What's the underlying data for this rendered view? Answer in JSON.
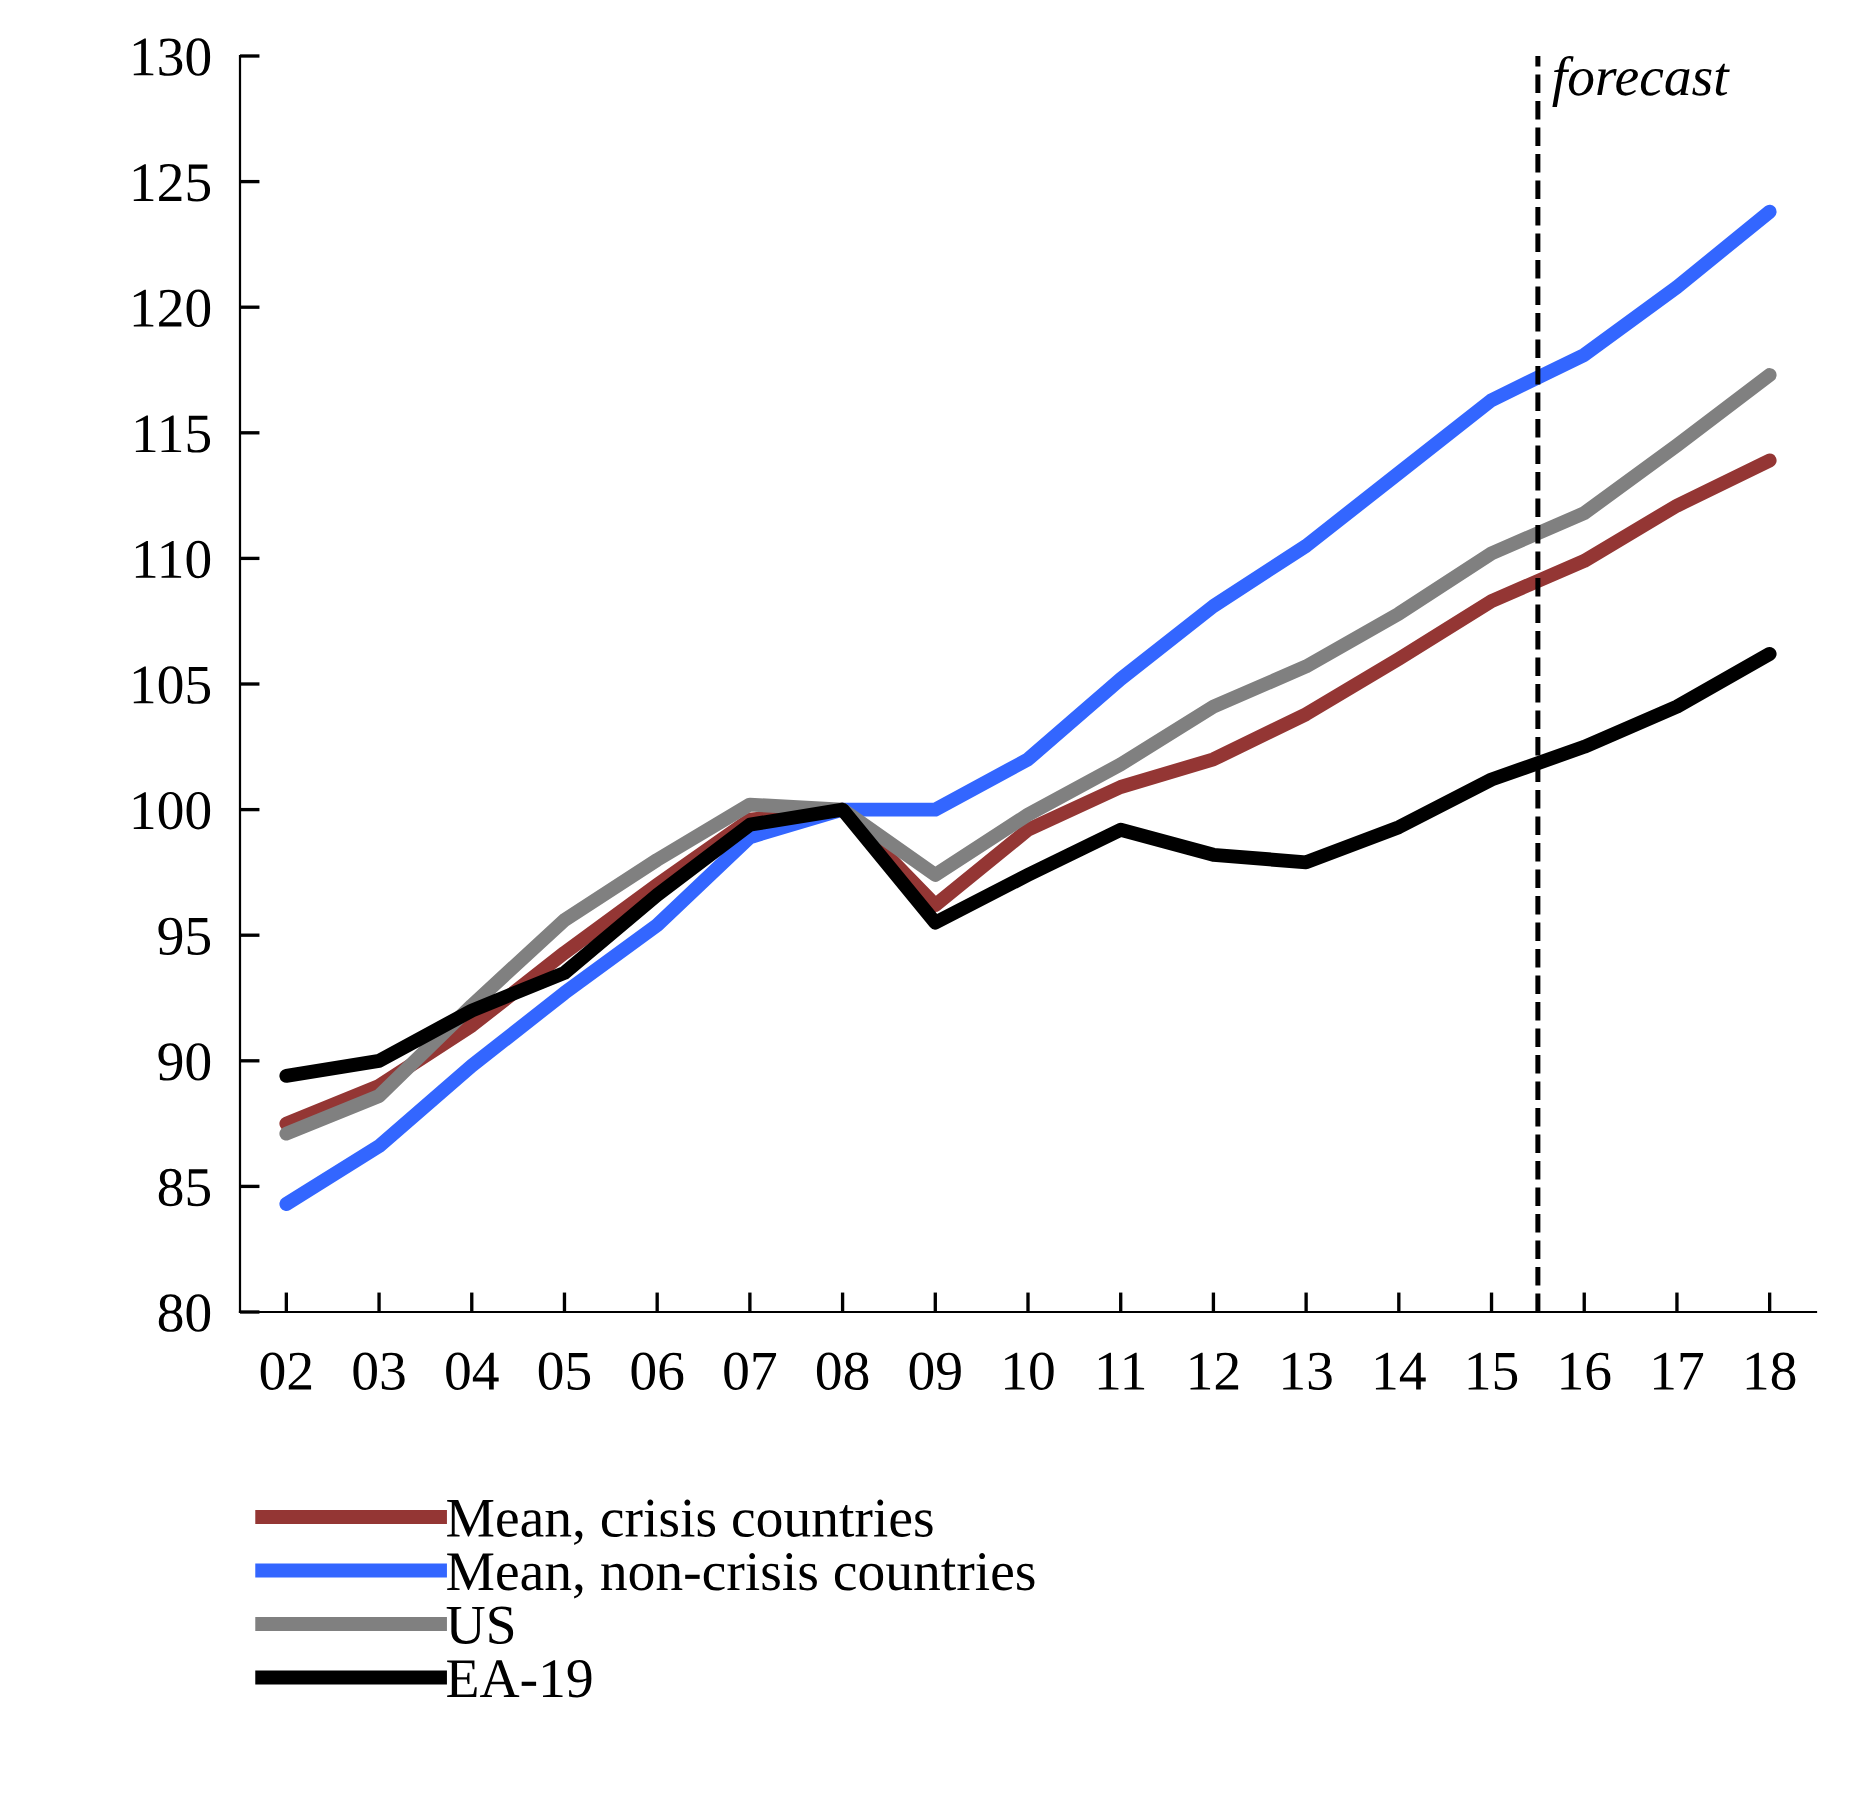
{
  "chart_data": {
    "type": "line",
    "x": [
      2002,
      2003,
      2004,
      2005,
      2006,
      2007,
      2008,
      2009,
      2010,
      2011,
      2012,
      2013,
      2014,
      2015,
      2016,
      2017,
      2018
    ],
    "xlim": [
      2001.5,
      2018.5
    ],
    "xticks": [
      {
        "value": 2002,
        "label": "02"
      },
      {
        "value": 2003,
        "label": "03"
      },
      {
        "value": 2004,
        "label": "04"
      },
      {
        "value": 2005,
        "label": "05"
      },
      {
        "value": 2006,
        "label": "06"
      },
      {
        "value": 2007,
        "label": "07"
      },
      {
        "value": 2008,
        "label": "08"
      },
      {
        "value": 2009,
        "label": "09"
      },
      {
        "value": 2010,
        "label": "10"
      },
      {
        "value": 2011,
        "label": "11"
      },
      {
        "value": 2012,
        "label": "12"
      },
      {
        "value": 2013,
        "label": "13"
      },
      {
        "value": 2014,
        "label": "14"
      },
      {
        "value": 2015,
        "label": "15"
      },
      {
        "value": 2016,
        "label": "16"
      },
      {
        "value": 2017,
        "label": "17"
      },
      {
        "value": 2018,
        "label": "18"
      }
    ],
    "ylim": [
      80,
      130
    ],
    "yticks": [
      80,
      85,
      90,
      95,
      100,
      105,
      110,
      115,
      120,
      125,
      130
    ],
    "series": [
      {
        "name": "Mean, crisis countries",
        "color": "#943634",
        "values": [
          87.5,
          89.0,
          91.4,
          94.3,
          97.0,
          99.6,
          100,
          96.2,
          99.2,
          100.9,
          102.0,
          103.8,
          106.0,
          108.3,
          109.9,
          112.1,
          113.9
        ]
      },
      {
        "name": "Mean, non-crisis countries",
        "color": "#3366ff",
        "values": [
          84.3,
          86.6,
          89.8,
          92.7,
          95.4,
          98.9,
          100,
          100,
          102.0,
          105.2,
          108.1,
          110.5,
          113.4,
          116.3,
          118.1,
          120.8,
          123.8
        ]
      },
      {
        "name": "US",
        "color": "#808080",
        "values": [
          87.1,
          88.6,
          92.2,
          95.6,
          98.0,
          100.2,
          100,
          97.4,
          99.8,
          101.8,
          104.1,
          105.7,
          107.8,
          110.2,
          111.8,
          114.5,
          117.3
        ]
      },
      {
        "name": "EA-19",
        "color": "#000000",
        "values": [
          89.4,
          90.0,
          92.0,
          93.5,
          96.6,
          99.4,
          100,
          95.5,
          97.4,
          99.2,
          98.2,
          97.9,
          99.3,
          101.2,
          102.5,
          104.1,
          106.2
        ]
      }
    ],
    "ref_lines": [
      {
        "axis": "x",
        "value": 2015.5,
        "label": "forecast",
        "color": "#000000",
        "line_style": "dashed"
      }
    ],
    "grid": false,
    "legend": "bottom",
    "marker": "none",
    "line_style": "solid"
  }
}
